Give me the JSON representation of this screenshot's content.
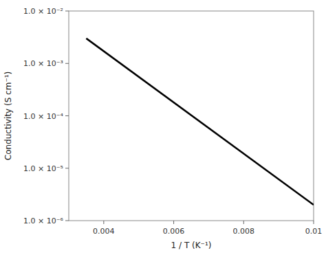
{
  "chart_data": {
    "type": "line",
    "xlabel": "1 / T (K⁻¹)",
    "ylabel": "Conductivity (S cm⁻¹)",
    "x": [
      0.0035,
      0.01
    ],
    "values": [
      0.003,
      2e-06
    ],
    "color": "#000000",
    "log": "y",
    "grid": false,
    "xlim": [
      0.003,
      0.01
    ],
    "ylim": [
      1e-06,
      0.01
    ],
    "xticks": [
      0.004,
      0.006,
      0.008,
      0.01
    ],
    "yticks": [
      {
        "value": 1e-06,
        "label": "1.0 × 10⁻⁶"
      },
      {
        "value": 1e-05,
        "label": "1.0 × 10⁻⁵"
      },
      {
        "value": 0.0001,
        "label": "1.0 × 10⁻⁴"
      },
      {
        "value": 0.001,
        "label": "1.0 × 10⁻³"
      },
      {
        "value": 0.01,
        "label": "1.0 × 10⁻²"
      }
    ]
  }
}
